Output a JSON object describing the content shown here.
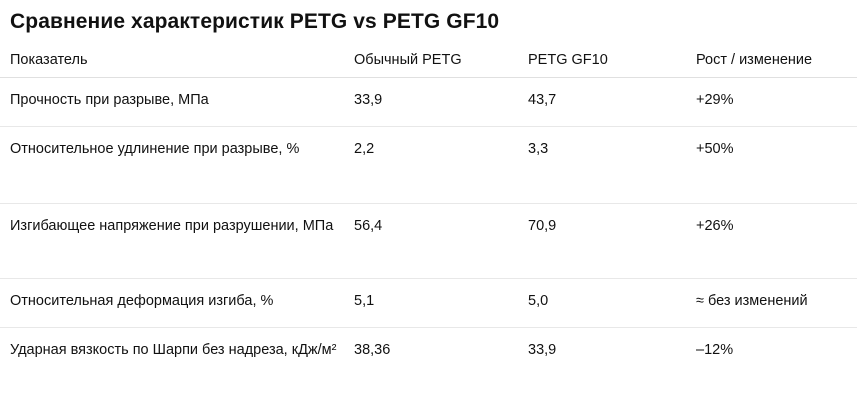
{
  "title": "Сравнение характеристик PETG vs PETG GF10",
  "table": {
    "headers": [
      "Показатель",
      "Обычный PETG",
      "PETG GF10",
      "Рост / изменение"
    ],
    "rows": [
      {
        "metric": "Прочность при разрыве, МПа",
        "petg": "33,9",
        "petg_gf10": "43,7",
        "change": "+29%"
      },
      {
        "metric": "Относительное удлинение при разрыве, %",
        "petg": "2,2",
        "petg_gf10": "3,3",
        "change": "+50%"
      },
      {
        "metric": "Изгибающее напряжение при разрушении, МПа",
        "petg": "56,4",
        "petg_gf10": "70,9",
        "change": "+26%"
      },
      {
        "metric": "Относительная деформация изгиба, %",
        "petg": "5,1",
        "petg_gf10": "5,0",
        "change": "≈ без изменений"
      },
      {
        "metric": "Ударная вязкость по Шарпи без надреза, кДж/м²",
        "petg": "38,36",
        "petg_gf10": "33,9",
        "change": "–12%"
      }
    ]
  }
}
